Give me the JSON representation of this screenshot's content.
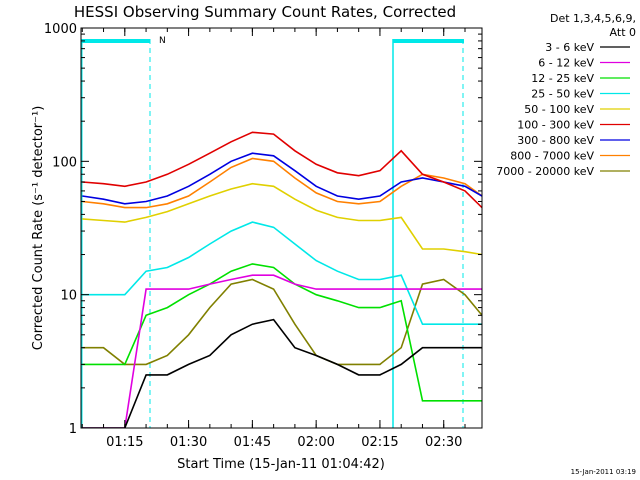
{
  "chart_data": {
    "type": "line",
    "title": "HESSI Observing Summary Count Rates, Corrected",
    "xlabel": "Start Time (15-Jan-11 01:04:42)",
    "ylabel": "Corrected Count Rate (s⁻¹ detector⁻¹)",
    "yscale": "log",
    "ylim": [
      1,
      1000
    ],
    "xlim": [
      "01:04:42",
      "02:39:00"
    ],
    "y_ticks": [
      "1",
      "10",
      "100",
      "1000"
    ],
    "x_ticks": [
      "01:15",
      "01:30",
      "01:45",
      "02:00",
      "02:15",
      "02:30"
    ],
    "legend_placement": "right, outside plot",
    "legend_header": [
      "Det 1,3,4,5,6,9,",
      "Att 0"
    ],
    "flag_label": "N",
    "timestamp": "15-Jan-2011 03:19",
    "times": [
      "01:05",
      "01:10",
      "01:15",
      "01:20",
      "01:25",
      "01:30",
      "01:35",
      "01:40",
      "01:45",
      "01:50",
      "01:55",
      "02:00",
      "02:05",
      "02:10",
      "02:15",
      "02:20",
      "02:25",
      "02:30",
      "02:35",
      "02:39"
    ],
    "series": [
      {
        "name": "3 - 6 keV",
        "color": "#000000",
        "values": [
          1,
          1,
          1,
          2.5,
          2.5,
          3,
          3.5,
          5,
          6,
          6.5,
          4,
          3.5,
          3,
          2.5,
          2.5,
          3,
          4,
          4,
          4,
          4
        ]
      },
      {
        "name": "6 - 12 keV",
        "color": "#e000e0",
        "values": [
          1,
          1,
          1,
          11,
          11,
          11,
          12,
          13,
          14,
          14,
          12,
          11,
          11,
          11,
          11,
          11,
          11,
          11,
          11,
          11
        ]
      },
      {
        "name": "12 - 25 keV",
        "color": "#00e000",
        "values": [
          3,
          3,
          3,
          7,
          8,
          10,
          12,
          15,
          17,
          16,
          12,
          10,
          9,
          8,
          8,
          9,
          1.6,
          1.6,
          1.6,
          1.6
        ]
      },
      {
        "name": "25 - 50 keV",
        "color": "#00e8e8",
        "values": [
          10,
          10,
          10,
          15,
          16,
          19,
          24,
          30,
          35,
          32,
          24,
          18,
          15,
          13,
          13,
          14,
          6,
          6,
          6,
          6
        ]
      },
      {
        "name": "50 - 100 keV",
        "color": "#e0d000",
        "values": [
          37,
          36,
          35,
          38,
          42,
          48,
          55,
          62,
          68,
          65,
          52,
          43,
          38,
          36,
          36,
          38,
          22,
          22,
          21,
          20
        ]
      },
      {
        "name": "100 - 300 keV",
        "color": "#e00000",
        "values": [
          70,
          68,
          65,
          70,
          80,
          95,
          115,
          140,
          165,
          160,
          120,
          95,
          82,
          78,
          85,
          120,
          80,
          70,
          60,
          45
        ]
      },
      {
        "name": "300 - 800 keV",
        "color": "#0000e0",
        "values": [
          55,
          52,
          48,
          50,
          55,
          65,
          80,
          100,
          115,
          110,
          85,
          65,
          55,
          52,
          55,
          70,
          75,
          70,
          65,
          55
        ]
      },
      {
        "name": "800 - 7000 keV",
        "color": "#ff8000",
        "values": [
          50,
          48,
          45,
          45,
          48,
          55,
          70,
          90,
          105,
          100,
          75,
          58,
          50,
          48,
          50,
          65,
          80,
          75,
          68,
          55
        ]
      },
      {
        "name": "7000 - 20000 keV",
        "color": "#808000",
        "values": [
          4,
          4,
          3,
          3,
          3.5,
          5,
          8,
          12,
          13,
          11,
          6,
          3.5,
          3,
          3,
          3,
          4,
          12,
          13,
          10,
          7
        ]
      }
    ]
  }
}
